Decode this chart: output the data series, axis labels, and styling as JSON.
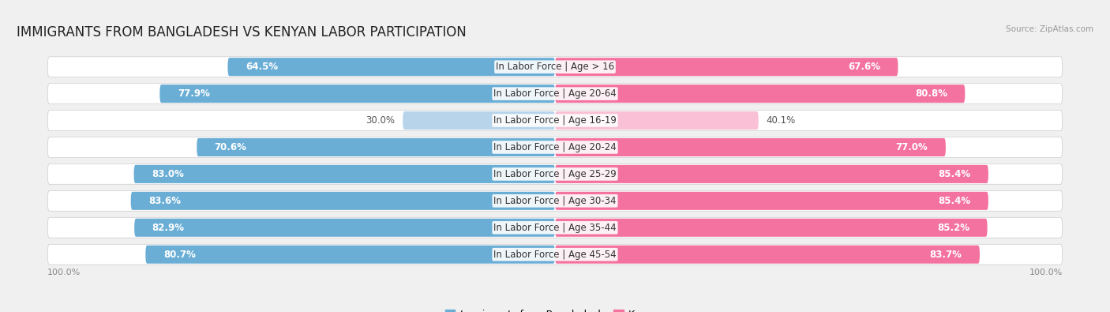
{
  "title": "IMMIGRANTS FROM BANGLADESH VS KENYAN LABOR PARTICIPATION",
  "source": "Source: ZipAtlas.com",
  "categories": [
    "In Labor Force | Age > 16",
    "In Labor Force | Age 20-64",
    "In Labor Force | Age 16-19",
    "In Labor Force | Age 20-24",
    "In Labor Force | Age 25-29",
    "In Labor Force | Age 30-34",
    "In Labor Force | Age 35-44",
    "In Labor Force | Age 45-54"
  ],
  "bangladesh_values": [
    64.5,
    77.9,
    30.0,
    70.6,
    83.0,
    83.6,
    82.9,
    80.7
  ],
  "kenyan_values": [
    67.6,
    80.8,
    40.1,
    77.0,
    85.4,
    85.4,
    85.2,
    83.7
  ],
  "bangladesh_color": "#6aaed6",
  "kenyan_color": "#f472a0",
  "bangladesh_color_light": "#b8d4ea",
  "kenyan_color_light": "#f9c0d6",
  "row_bg_color": "#e8e8e8",
  "fig_bg_color": "#f0f0f0",
  "title_fontsize": 12,
  "label_fontsize": 8.5,
  "value_fontsize": 8.5,
  "legend_fontsize": 9,
  "bar_height": 0.68,
  "legend_labels": [
    "Immigrants from Bangladesh",
    "Kenyan"
  ],
  "bottom_label": "100.0%"
}
